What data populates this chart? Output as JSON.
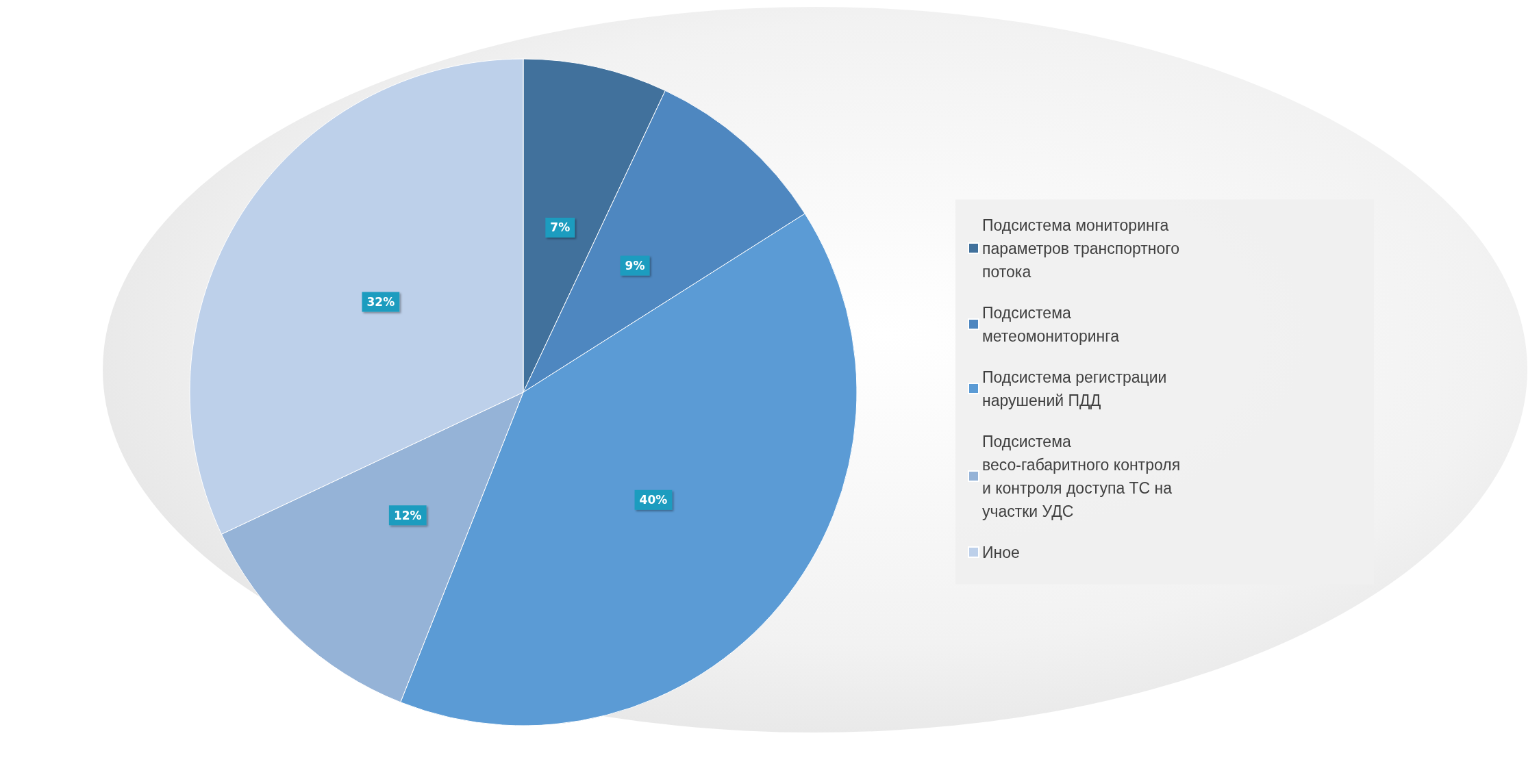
{
  "chart_data": {
    "type": "pie",
    "categories": [
      "Подсистема мониторинга параметров транспортного потока",
      "Подсистема метеомониторинга",
      "Подсистема регистрации нарушений ПДД",
      "Подсистема весо-габаритного контроля и контроля доступа ТС на участки УДС",
      "Иное"
    ],
    "values": [
      7,
      9,
      40,
      12,
      32
    ],
    "value_labels": [
      "7%",
      "9%",
      "40%",
      "12%",
      "32%"
    ],
    "colors": [
      "#41719c",
      "#4e87c0",
      "#5b9bd5",
      "#95b3d7",
      "#bdd0ea"
    ],
    "legend": "right"
  }
}
